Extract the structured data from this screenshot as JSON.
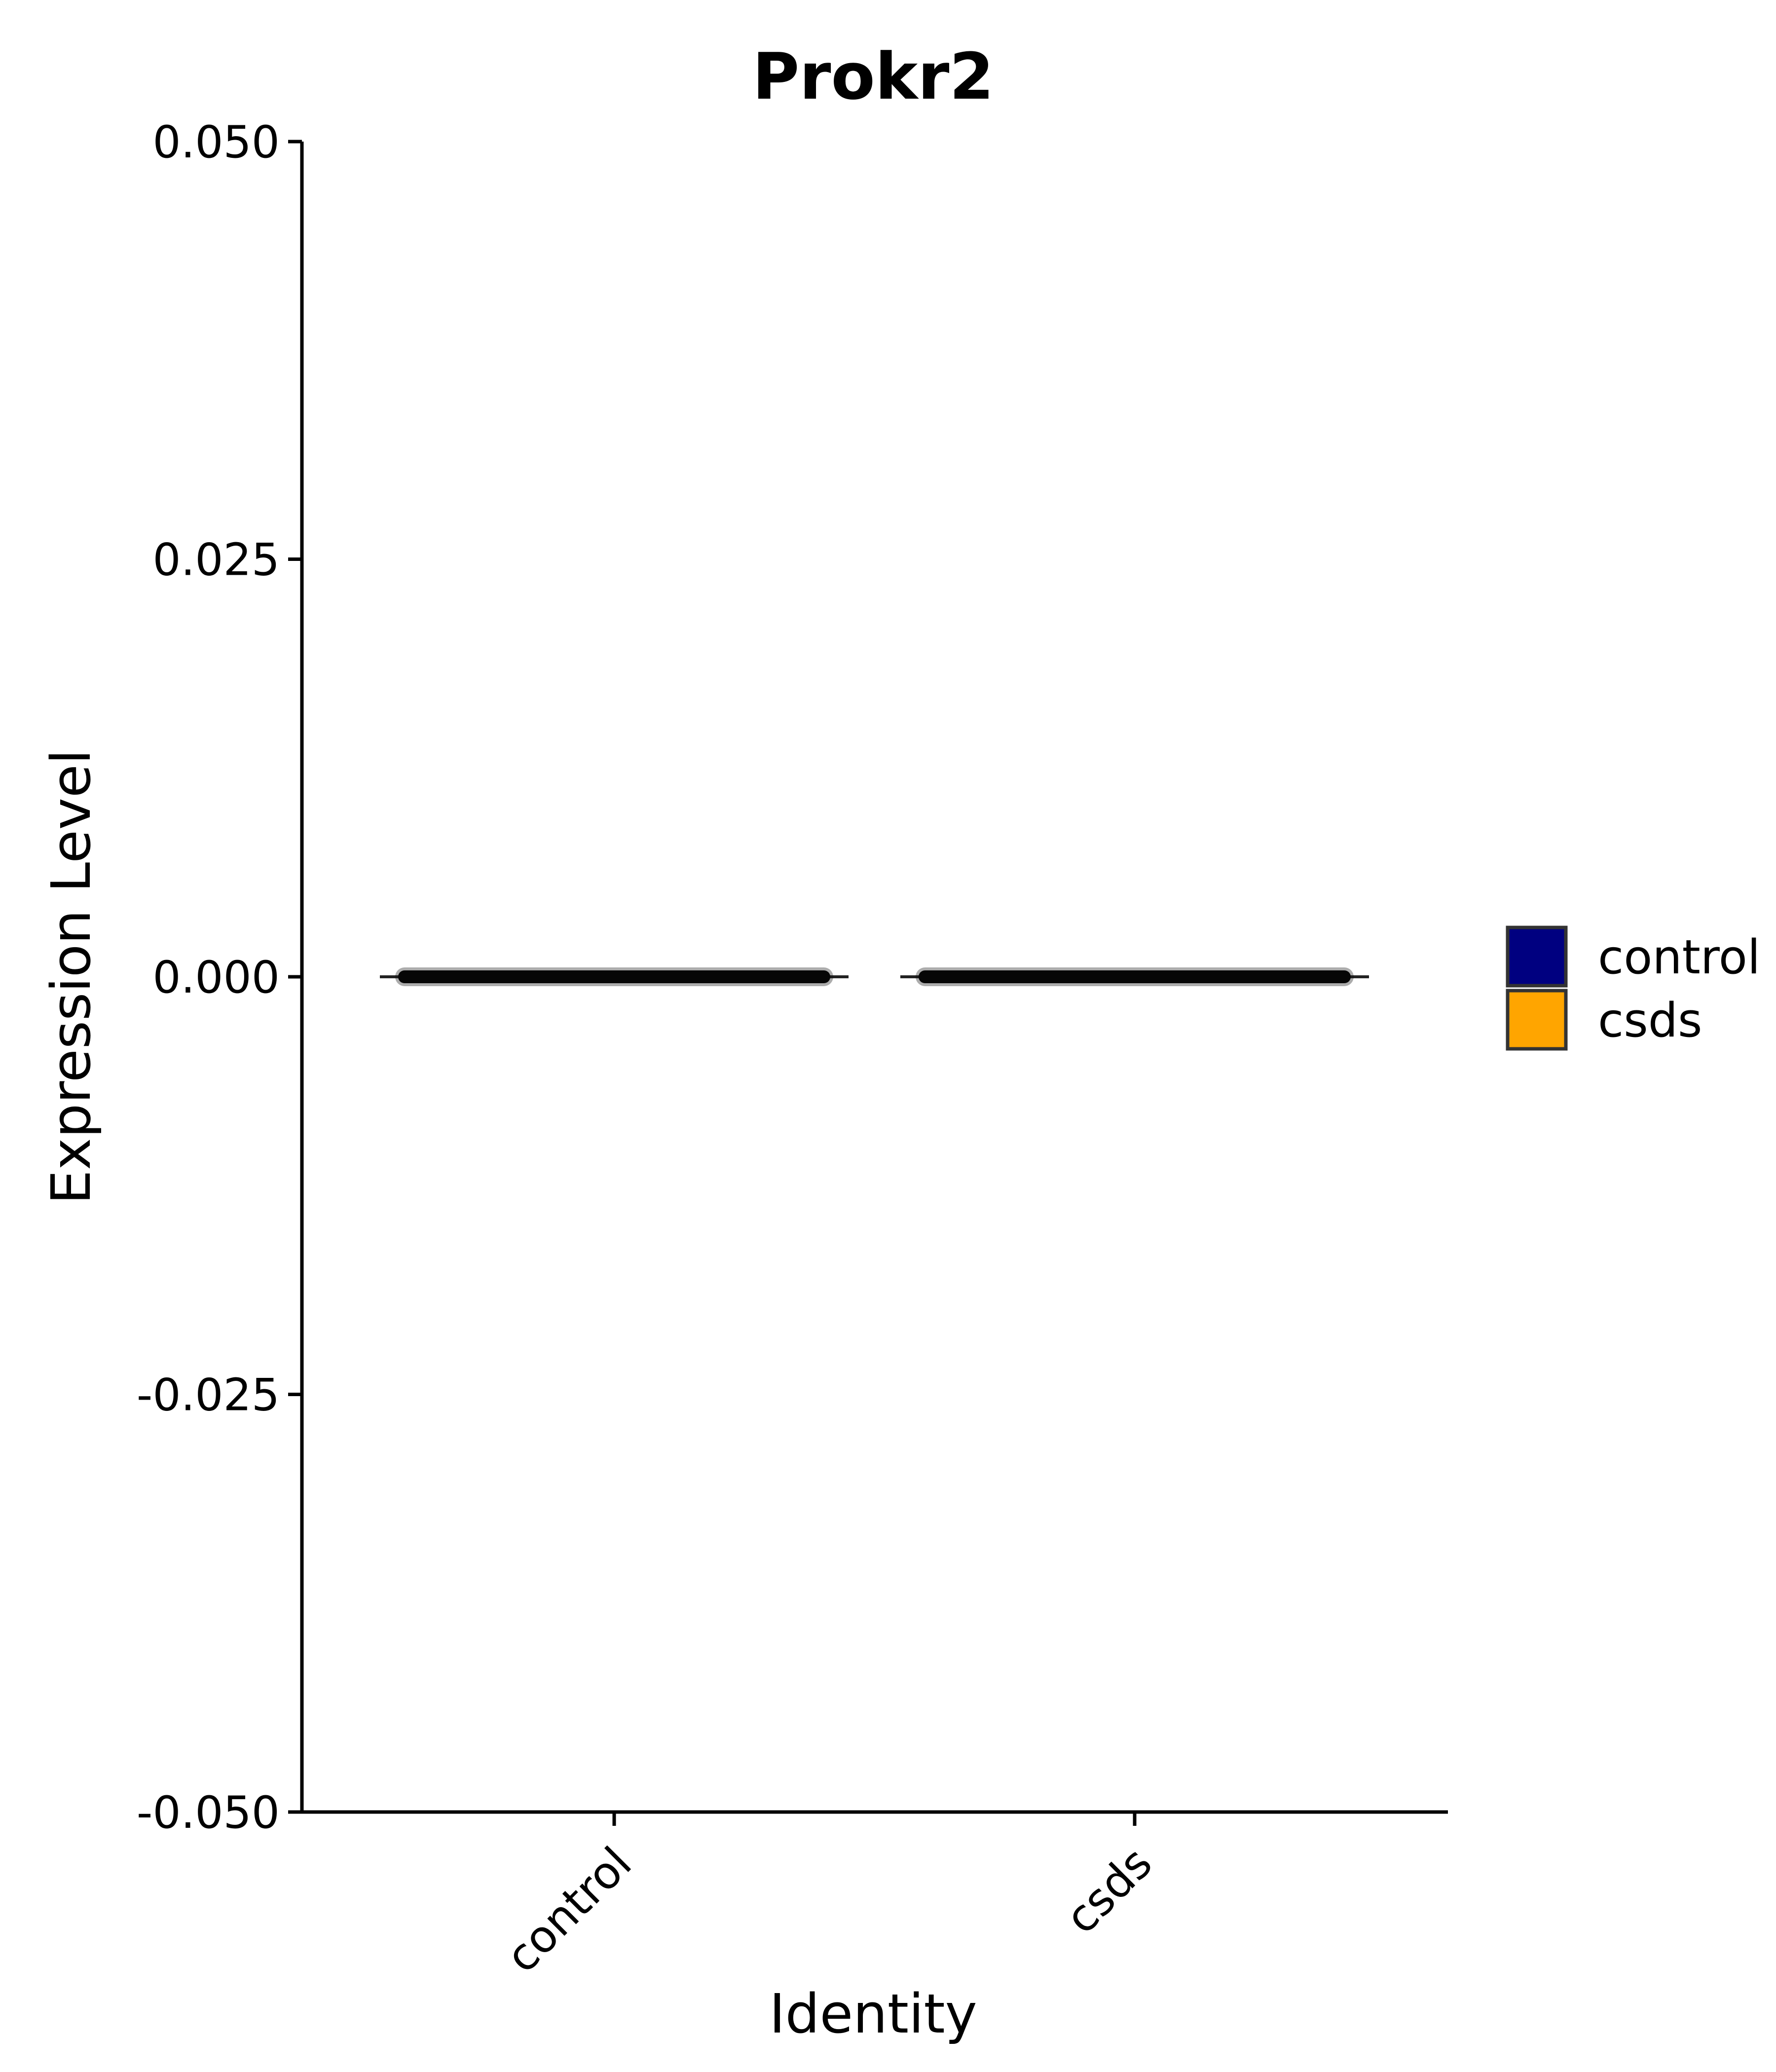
{
  "chart_data": {
    "type": "violin",
    "title": "Prokr2",
    "xlabel": "Identity",
    "ylabel": "Expression Level",
    "categories": [
      "control",
      "csds"
    ],
    "ylim": [
      -0.05,
      0.05
    ],
    "yticks": [
      {
        "value": -0.05,
        "label": "-0.050"
      },
      {
        "value": -0.025,
        "label": "-0.025"
      },
      {
        "value": 0.0,
        "label": "0.000"
      },
      {
        "value": 0.025,
        "label": "0.025"
      },
      {
        "value": 0.05,
        "label": "0.050"
      }
    ],
    "series": [
      {
        "name": "control",
        "color": "#000080",
        "values": [
          0.0
        ]
      },
      {
        "name": "csds",
        "color": "#FFA500",
        "values": [
          0.0
        ]
      }
    ],
    "legend": {
      "position": "right",
      "entries": [
        {
          "label": "control",
          "color": "#000080"
        },
        {
          "label": "csds",
          "color": "#FFA500"
        }
      ]
    },
    "grid": false
  }
}
